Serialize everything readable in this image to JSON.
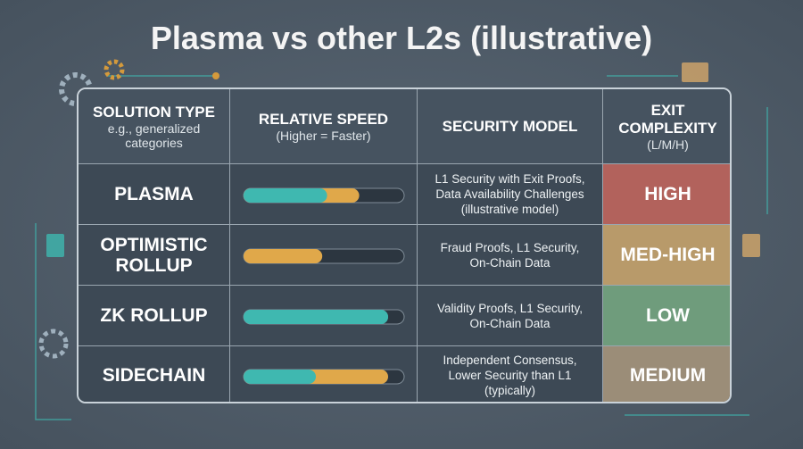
{
  "title": "Plasma vs other L2s (illustrative)",
  "header": [
    {
      "title": "SOLUTION TYPE",
      "sub": [
        "e.g., generalized",
        "categories"
      ]
    },
    {
      "title": "RELATIVE SPEED",
      "sub": [
        "(Higher = Faster)"
      ]
    },
    {
      "title": "SECURITY MODEL",
      "sub": []
    },
    {
      "title": [
        "EXIT",
        "COMPLEXITY"
      ],
      "sub": [
        "(L/M/H)"
      ]
    }
  ],
  "rows": [
    {
      "type": [
        "PLASMA"
      ],
      "security": [
        "L1 Security with Exit Proofs,",
        "Data Availability Challenges",
        "(illustrative model)"
      ],
      "exit": "HIGH"
    },
    {
      "type": [
        "OPTIMISTIC",
        "ROLLUP"
      ],
      "security": [
        "Fraud Proofs, L1 Security,",
        "On-Chain Data"
      ],
      "exit": "MED-HIGH"
    },
    {
      "type": [
        "ZK ROLLUP"
      ],
      "security": [
        "Validity Proofs, L1 Security,",
        "On-Chain Data"
      ],
      "exit": "LOW"
    },
    {
      "type": [
        "SIDECHAIN"
      ],
      "security": [
        "Independent Consensus,",
        "Lower Security than L1",
        "(typically)"
      ],
      "exit": "MEDIUM"
    }
  ]
}
